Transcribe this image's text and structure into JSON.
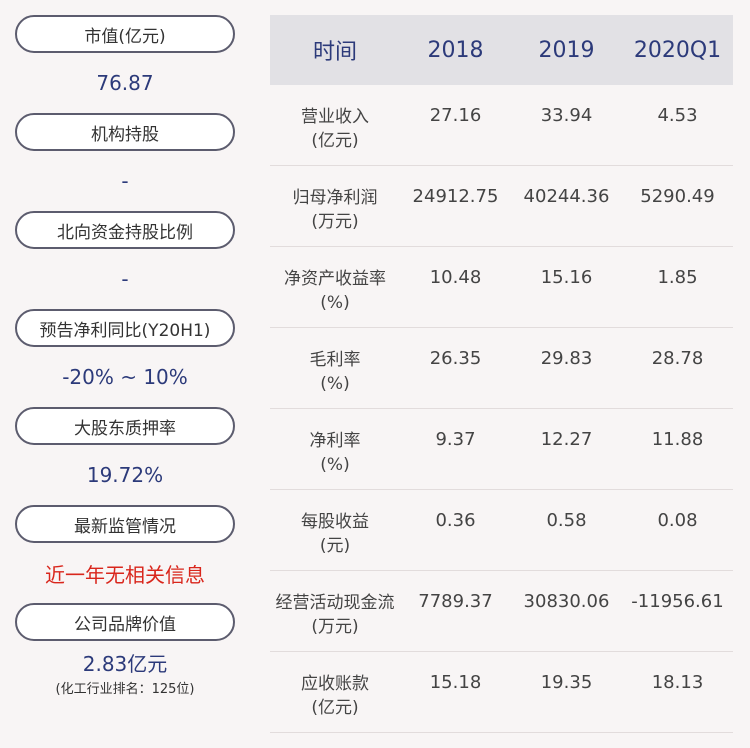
{
  "left_panel": {
    "items": [
      {
        "label": "市值(亿元)",
        "value": "76.87"
      },
      {
        "label": "机构持股",
        "value": "-"
      },
      {
        "label": "北向资金持股比例",
        "value": "-"
      },
      {
        "label": "预告净利同比(Y20H1)",
        "value": "-20% ~ 10%"
      },
      {
        "label": "大股东质押率",
        "value": "19.72%"
      },
      {
        "label": "最新监管情况",
        "value": "近一年无相关信息"
      },
      {
        "label": "公司品牌价值",
        "value": "2.83亿元",
        "sub": "(化工行业排名：125位)"
      }
    ],
    "colors": {
      "value": "#2c3a7a",
      "alert": "#d9261c"
    }
  },
  "table": {
    "headers": [
      "时间",
      "2018",
      "2019",
      "2020Q1"
    ],
    "rows": [
      {
        "label_line1": "营业收入",
        "label_line2": "(亿元)",
        "values": [
          "27.16",
          "33.94",
          "4.53"
        ]
      },
      {
        "label_line1": "归母净利润",
        "label_line2": "(万元)",
        "values": [
          "24912.75",
          "40244.36",
          "5290.49"
        ]
      },
      {
        "label_line1": "净资产收益率",
        "label_line2": "(%)",
        "values": [
          "10.48",
          "15.16",
          "1.85"
        ]
      },
      {
        "label_line1": "毛利率",
        "label_line2": "(%)",
        "values": [
          "26.35",
          "29.83",
          "28.78"
        ]
      },
      {
        "label_line1": "净利率",
        "label_line2": "(%)",
        "values": [
          "9.37",
          "12.27",
          "11.88"
        ]
      },
      {
        "label_line1": "每股收益",
        "label_line2": "(元)",
        "values": [
          "0.36",
          "0.58",
          "0.08"
        ]
      },
      {
        "label_line1": "经营活动现金流",
        "label_line2": "(万元)",
        "values": [
          "7789.37",
          "30830.06",
          "-11956.61"
        ]
      },
      {
        "label_line1": "应收账款",
        "label_line2": "(亿元)",
        "values": [
          "15.18",
          "19.35",
          "18.13"
        ]
      }
    ]
  }
}
